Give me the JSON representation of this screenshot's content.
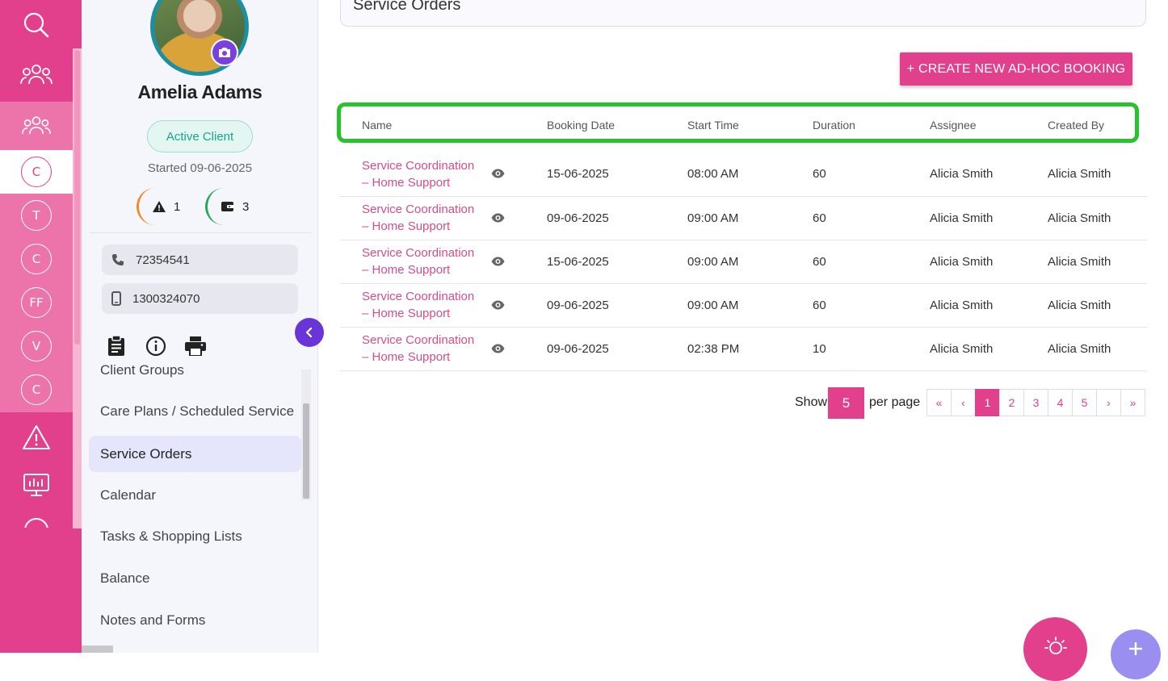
{
  "rail": {
    "items": [
      {
        "icon": "search-icon"
      },
      {
        "icon": "people-icon"
      },
      {
        "icon": "people-icon"
      },
      {
        "letter": "C",
        "active": true
      },
      {
        "letter": "T"
      },
      {
        "letter": "C"
      },
      {
        "letter": "FF"
      },
      {
        "letter": "V"
      },
      {
        "letter": "C"
      },
      {
        "icon": "warning-icon"
      },
      {
        "icon": "monitor-chart-icon"
      }
    ]
  },
  "client": {
    "name": "Amelia Adams",
    "status": "Active Client",
    "started": "Started 09-06-2025",
    "alerts_count": "1",
    "wallet_count": "3",
    "phone": "72354541",
    "mobile": "1300324070"
  },
  "menu": {
    "items": [
      {
        "label": "Client Groups"
      },
      {
        "label": "Care Plans / Scheduled Service"
      },
      {
        "label": "Service Orders",
        "active": true
      },
      {
        "label": "Calendar"
      },
      {
        "label": "Tasks & Shopping Lists"
      },
      {
        "label": "Balance"
      },
      {
        "label": "Notes and Forms"
      }
    ]
  },
  "page": {
    "title": "Service Orders",
    "create_button": "+ CREATE NEW AD-HOC BOOKING"
  },
  "table": {
    "headers": [
      "Name",
      "Booking Date",
      "Start Time",
      "Duration",
      "Assignee",
      "Created By"
    ],
    "rows": [
      {
        "name_line1": "Service Coordination",
        "name_line2": "– Home Support",
        "date": "15-06-2025",
        "time": "08:00 AM",
        "duration": "60",
        "assignee": "Alicia Smith",
        "created_by": "Alicia Smith"
      },
      {
        "name_line1": "Service Coordination",
        "name_line2": "– Home Support",
        "date": "09-06-2025",
        "time": "09:00 AM",
        "duration": "60",
        "assignee": "Alicia Smith",
        "created_by": "Alicia Smith"
      },
      {
        "name_line1": "Service Coordination",
        "name_line2": "– Home Support",
        "date": "15-06-2025",
        "time": "09:00 AM",
        "duration": "60",
        "assignee": "Alicia Smith",
        "created_by": "Alicia Smith"
      },
      {
        "name_line1": "Service Coordination",
        "name_line2": "– Home Support",
        "date": "09-06-2025",
        "time": "09:00 AM",
        "duration": "60",
        "assignee": "Alicia Smith",
        "created_by": "Alicia Smith"
      },
      {
        "name_line1": "Service Coordination",
        "name_line2": "– Home Support",
        "date": "09-06-2025",
        "time": "02:38 PM",
        "duration": "10",
        "assignee": "Alicia Smith",
        "created_by": "Alicia Smith"
      }
    ]
  },
  "pagination": {
    "show_label": "Show",
    "per_page_value": "5",
    "per_page_label": "per page",
    "first": "«",
    "prev": "‹",
    "pages": [
      "1",
      "2",
      "3",
      "4",
      "5"
    ],
    "current": "1",
    "next": "›",
    "last": "»"
  },
  "colors": {
    "accent": "#e2408c",
    "highlight": "#27c22e",
    "purple": "#6a35d6"
  }
}
